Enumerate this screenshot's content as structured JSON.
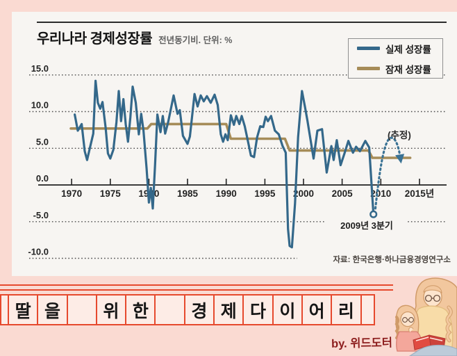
{
  "chart_data": {
    "type": "line",
    "title": "우리나라 경제성장률",
    "subtitle": "전년동기비. 단위: %",
    "grid": "dotted-horizontal",
    "legend_position": "top-right",
    "ylim": [
      -11.5,
      16.5
    ],
    "xlim": [
      1969.5,
      2016.5
    ],
    "yticks": [
      {
        "label": "15.0",
        "value": 15
      },
      {
        "label": "10.0",
        "value": 10
      },
      {
        "label": "5.0",
        "value": 5
      },
      {
        "label": "0.0",
        "value": 0
      },
      {
        "label": "-5.0",
        "value": -5
      },
      {
        "label": "-10.0",
        "value": -10
      }
    ],
    "xticks": [
      {
        "label": "1970",
        "year": 1970
      },
      {
        "label": "1975",
        "year": 1975
      },
      {
        "label": "1980",
        "year": 1980
      },
      {
        "label": "1985",
        "year": 1985
      },
      {
        "label": "1990",
        "year": 1990
      },
      {
        "label": "1995",
        "year": 1995
      },
      {
        "label": "2000",
        "year": 2000
      },
      {
        "label": "2005",
        "year": 2005
      },
      {
        "label": "2010",
        "year": 2010
      },
      {
        "label": "2015년",
        "year": 2015
      }
    ],
    "series": [
      {
        "name": "실제 성장률",
        "color": "#34688a",
        "points": [
          [
            1970.4,
            9.6
          ],
          [
            1970.8,
            7.4
          ],
          [
            1971.3,
            8.3
          ],
          [
            1971.7,
            4.6
          ],
          [
            1972.0,
            3.4
          ],
          [
            1972.4,
            5.2
          ],
          [
            1972.8,
            7.0
          ],
          [
            1973.1,
            14.2
          ],
          [
            1973.4,
            11.2
          ],
          [
            1973.7,
            10.4
          ],
          [
            1974.0,
            11.3
          ],
          [
            1974.4,
            7.8
          ],
          [
            1974.7,
            4.3
          ],
          [
            1975.0,
            3.6
          ],
          [
            1975.4,
            4.8
          ],
          [
            1975.8,
            8.6
          ],
          [
            1976.1,
            12.8
          ],
          [
            1976.4,
            8.7
          ],
          [
            1976.7,
            11.7
          ],
          [
            1977.0,
            8.3
          ],
          [
            1977.3,
            5.9
          ],
          [
            1977.6,
            9.2
          ],
          [
            1977.9,
            13.4
          ],
          [
            1978.3,
            11.2
          ],
          [
            1978.7,
            6.9
          ],
          [
            1979.0,
            9.7
          ],
          [
            1979.3,
            7.4
          ],
          [
            1979.7,
            2.2
          ],
          [
            1980.0,
            -2.4
          ],
          [
            1980.25,
            -0.4
          ],
          [
            1980.5,
            -3.2
          ],
          [
            1980.8,
            2.8
          ],
          [
            1981.1,
            9.6
          ],
          [
            1981.5,
            7.2
          ],
          [
            1981.8,
            9.4
          ],
          [
            1982.1,
            7.0
          ],
          [
            1982.5,
            8.6
          ],
          [
            1983.2,
            12.2
          ],
          [
            1983.7,
            9.7
          ],
          [
            1984.0,
            10.2
          ],
          [
            1984.4,
            6.7
          ],
          [
            1985.0,
            5.6
          ],
          [
            1985.3,
            6.6
          ],
          [
            1985.9,
            12.4
          ],
          [
            1986.3,
            10.7
          ],
          [
            1986.7,
            12.2
          ],
          [
            1987.1,
            11.4
          ],
          [
            1987.5,
            12.1
          ],
          [
            1988.0,
            11.2
          ],
          [
            1988.5,
            12.3
          ],
          [
            1988.9,
            10.9
          ],
          [
            1989.3,
            6.9
          ],
          [
            1989.6,
            5.9
          ],
          [
            1989.9,
            6.9
          ],
          [
            1990.2,
            6.1
          ],
          [
            1990.6,
            9.5
          ],
          [
            1991.0,
            8.2
          ],
          [
            1991.3,
            9.4
          ],
          [
            1991.7,
            8.3
          ],
          [
            1992.0,
            9.4
          ],
          [
            1992.4,
            8.0
          ],
          [
            1992.8,
            6.0
          ],
          [
            1993.2,
            4.0
          ],
          [
            1993.6,
            3.8
          ],
          [
            1994.0,
            6.5
          ],
          [
            1994.4,
            8.0
          ],
          [
            1994.8,
            7.9
          ],
          [
            1995.1,
            9.3
          ],
          [
            1995.4,
            8.7
          ],
          [
            1995.8,
            9.4
          ],
          [
            1996.3,
            7.4
          ],
          [
            1996.8,
            6.9
          ],
          [
            1997.3,
            5.3
          ],
          [
            1997.7,
            4.4
          ],
          [
            1998.0,
            -6.0
          ],
          [
            1998.2,
            -8.3
          ],
          [
            1998.5,
            -8.5
          ],
          [
            1998.9,
            -2.5
          ],
          [
            1999.3,
            6.5
          ],
          [
            1999.8,
            12.8
          ],
          [
            2000.2,
            10.6
          ],
          [
            2000.5,
            8.8
          ],
          [
            2001.3,
            3.6
          ],
          [
            2001.8,
            7.4
          ],
          [
            2002.4,
            7.6
          ],
          [
            2003.0,
            1.7
          ],
          [
            2003.6,
            5.3
          ],
          [
            2003.9,
            3.4
          ],
          [
            2004.3,
            6.1
          ],
          [
            2004.8,
            2.7
          ],
          [
            2005.3,
            4.3
          ],
          [
            2005.8,
            6.0
          ],
          [
            2006.4,
            4.4
          ],
          [
            2006.8,
            5.2
          ],
          [
            2007.3,
            4.6
          ],
          [
            2008.0,
            6.0
          ],
          [
            2008.5,
            5.1
          ],
          [
            2009.05,
            -4.0
          ]
        ]
      },
      {
        "name": "잠재 성장률",
        "color": "#a68c58",
        "points": [
          [
            1969.9,
            7.7
          ],
          [
            1979.8,
            7.7
          ],
          [
            1980.3,
            8.3
          ],
          [
            1990.0,
            8.3
          ],
          [
            1990.6,
            6.3
          ],
          [
            1997.6,
            6.3
          ],
          [
            1998.2,
            4.7
          ],
          [
            2008.4,
            4.7
          ],
          [
            2008.9,
            3.7
          ],
          [
            2013.8,
            3.7
          ]
        ]
      }
    ],
    "legend": [
      {
        "label": "실제 성장률",
        "color": "#34688a"
      },
      {
        "label": "잠재 성장률",
        "color": "#a68c58"
      }
    ],
    "annotations": {
      "estimate_label": "(추정)",
      "dip_label": "2009년 3분기",
      "source": "자료: 한국은행·하나금융경영연구소",
      "dip_point": {
        "year": 2009.05,
        "value": -4.0
      },
      "estimate_arrow": {
        "style": "dashed-curved-arrow",
        "from": {
          "year": 2009.3,
          "value": -3.2
        },
        "apex": {
          "year": 2011.2,
          "value": 6.4
        },
        "to": {
          "year": 2012.5,
          "value": 3.0
        }
      }
    }
  },
  "banner": {
    "cells": [
      "",
      "딸",
      "을",
      "",
      "위",
      "한",
      "",
      "경",
      "제",
      "다",
      "이",
      "어",
      "리",
      ""
    ],
    "byline": "by. 위드도터",
    "line_color": "#e6492d",
    "cell_fill": "#fdece6"
  },
  "page": {
    "background": "#fadad2",
    "card_background": "#f7f5f2"
  }
}
